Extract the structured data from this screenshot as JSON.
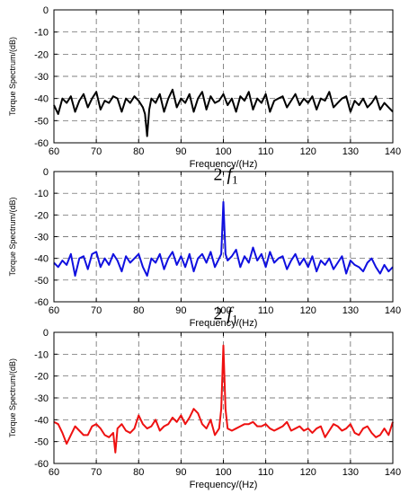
{
  "chart_data": [
    {
      "type": "line",
      "xlabel": "Frequency/(Hz)",
      "ylabel": "Torque Spectrum/(dB)",
      "xlim": [
        60,
        140
      ],
      "ylim": [
        -60,
        0
      ],
      "xticks": [
        60,
        70,
        80,
        90,
        100,
        110,
        120,
        130,
        140
      ],
      "yticks": [
        0,
        -10,
        -20,
        -30,
        -40,
        -50,
        -60
      ],
      "grid": true,
      "annotation": "",
      "series": [
        {
          "color": "#000000",
          "x": [
            60,
            61,
            62,
            63,
            64,
            65,
            66,
            67,
            68,
            69,
            70,
            71,
            72,
            73,
            74,
            75,
            76,
            77,
            78,
            79,
            80,
            81,
            81.5,
            82,
            82.5,
            83,
            84,
            85,
            86,
            87,
            88,
            89,
            90,
            91,
            92,
            93,
            94,
            95,
            96,
            97,
            98,
            99,
            100,
            101,
            102,
            103,
            104,
            105,
            106,
            107,
            108,
            109,
            110,
            111,
            112,
            113,
            114,
            115,
            116,
            117,
            118,
            119,
            120,
            121,
            122,
            123,
            124,
            125,
            126,
            127,
            128,
            129,
            130,
            131,
            132,
            133,
            134,
            135,
            136,
            137,
            138,
            139,
            140
          ],
          "values": [
            -43,
            -47,
            -40,
            -42,
            -39,
            -46,
            -41,
            -38,
            -44,
            -40,
            -37,
            -45,
            -41,
            -42,
            -39,
            -40,
            -46,
            -40,
            -42,
            -39,
            -41,
            -44,
            -47,
            -57,
            -45,
            -40,
            -42,
            -38,
            -46,
            -40,
            -36,
            -44,
            -40,
            -42,
            -38,
            -46,
            -40,
            -37,
            -45,
            -39,
            -42,
            -41,
            -38,
            -43,
            -40,
            -46,
            -39,
            -41,
            -37,
            -45,
            -40,
            -42,
            -38,
            -46,
            -41,
            -40,
            -39,
            -44,
            -41,
            -38,
            -43,
            -40,
            -42,
            -39,
            -45,
            -40,
            -41,
            -37,
            -44,
            -42,
            -40,
            -39,
            -46,
            -41,
            -43,
            -40,
            -44,
            -42,
            -39,
            -45,
            -42,
            -44,
            -46
          ]
        }
      ]
    },
    {
      "type": "line",
      "xlabel": "Frequency/(Hz)",
      "ylabel": "Torque Spectrum/(dB)",
      "xlim": [
        60,
        140
      ],
      "ylim": [
        -60,
        0
      ],
      "xticks": [
        60,
        70,
        80,
        90,
        100,
        110,
        120,
        130,
        140
      ],
      "yticks": [
        0,
        -10,
        -20,
        -30,
        -40,
        -50,
        -60
      ],
      "grid": true,
      "annotation": "2 f1",
      "series": [
        {
          "color": "#1010e0",
          "x": [
            60,
            61,
            62,
            63,
            64,
            65,
            66,
            67,
            68,
            69,
            70,
            71,
            72,
            73,
            74,
            75,
            76,
            77,
            78,
            79,
            80,
            81,
            82,
            83,
            84,
            85,
            86,
            87,
            88,
            89,
            90,
            91,
            92,
            93,
            94,
            95,
            96,
            97,
            98,
            99,
            99.5,
            100,
            100.5,
            101,
            102,
            103,
            104,
            105,
            106,
            107,
            108,
            109,
            110,
            111,
            112,
            113,
            114,
            115,
            116,
            117,
            118,
            119,
            120,
            121,
            122,
            123,
            124,
            125,
            126,
            127,
            128,
            129,
            130,
            131,
            132,
            133,
            134,
            135,
            136,
            137,
            138,
            139,
            140
          ],
          "values": [
            -42,
            -44,
            -41,
            -43,
            -38,
            -48,
            -40,
            -39,
            -45,
            -38,
            -37,
            -44,
            -40,
            -43,
            -38,
            -41,
            -46,
            -39,
            -42,
            -40,
            -38,
            -44,
            -48,
            -40,
            -42,
            -38,
            -45,
            -40,
            -37,
            -43,
            -39,
            -44,
            -38,
            -46,
            -40,
            -38,
            -42,
            -37,
            -44,
            -40,
            -38,
            -14,
            -38,
            -41,
            -39,
            -36,
            -44,
            -39,
            -42,
            -35,
            -41,
            -38,
            -44,
            -37,
            -42,
            -40,
            -39,
            -45,
            -41,
            -38,
            -43,
            -40,
            -44,
            -39,
            -46,
            -41,
            -43,
            -40,
            -45,
            -42,
            -39,
            -47,
            -41,
            -43,
            -44,
            -46,
            -42,
            -40,
            -44,
            -47,
            -43,
            -46,
            -44
          ]
        }
      ]
    },
    {
      "type": "line",
      "xlabel": "Frequency/(Hz)",
      "ylabel": "Torque Spectrum/(dB)",
      "xlim": [
        60,
        140
      ],
      "ylim": [
        -60,
        0
      ],
      "xticks": [
        60,
        70,
        80,
        90,
        100,
        110,
        120,
        130,
        140
      ],
      "yticks": [
        0,
        -10,
        -20,
        -30,
        -40,
        -50,
        -60
      ],
      "grid": true,
      "annotation": "2 f1",
      "series": [
        {
          "color": "#ee1111",
          "x": [
            60,
            61,
            62,
            63,
            64,
            65,
            66,
            67,
            68,
            69,
            70,
            71,
            72,
            73,
            74,
            74.5,
            75,
            76,
            77,
            78,
            79,
            80,
            81,
            82,
            83,
            84,
            85,
            86,
            87,
            88,
            89,
            90,
            91,
            92,
            93,
            94,
            95,
            96,
            97,
            98,
            99,
            99.5,
            100,
            100.5,
            101,
            102,
            103,
            104,
            105,
            106,
            107,
            108,
            109,
            110,
            111,
            112,
            113,
            114,
            115,
            116,
            117,
            118,
            119,
            120,
            121,
            122,
            123,
            124,
            125,
            126,
            127,
            128,
            129,
            130,
            131,
            132,
            133,
            134,
            135,
            136,
            137,
            138,
            139,
            140
          ],
          "values": [
            -41,
            -42,
            -46,
            -51,
            -47,
            -43,
            -45,
            -47,
            -47,
            -43,
            -42,
            -44,
            -47,
            -48,
            -46,
            -55,
            -44,
            -42,
            -45,
            -46,
            -44,
            -38,
            -42,
            -44,
            -43,
            -40,
            -45,
            -43,
            -42,
            -39,
            -41,
            -38,
            -42,
            -39,
            -35,
            -37,
            -42,
            -44,
            -40,
            -47,
            -44,
            -35,
            -6,
            -35,
            -44,
            -45,
            -44,
            -43,
            -42,
            -42,
            -41,
            -43,
            -43,
            -42,
            -44,
            -45,
            -44,
            -43,
            -41,
            -45,
            -44,
            -43,
            -45,
            -44,
            -46,
            -44,
            -43,
            -48,
            -45,
            -42,
            -43,
            -45,
            -44,
            -42,
            -46,
            -47,
            -44,
            -43,
            -46,
            -48,
            -47,
            -44,
            -47,
            -41
          ]
        }
      ]
    }
  ]
}
